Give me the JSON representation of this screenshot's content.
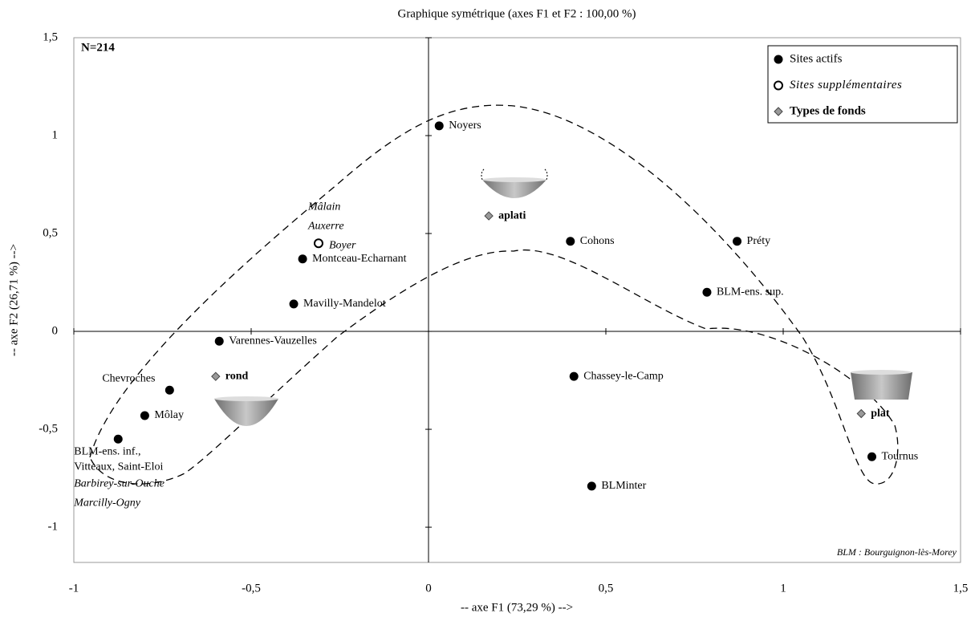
{
  "chart_data": {
    "type": "scatter",
    "title": "Graphique symétrique (axes F1 et F2 : 100,00 %)",
    "x_label": "-- axe F1 (73,29 %) -->",
    "y_label": "-- axe F2 (26,71 %) -->",
    "annotations": [
      "N=214",
      "BLM : Bourguignon-lès-Morey"
    ],
    "xlim": [
      -1,
      1.5
    ],
    "ylim": [
      -1.18,
      1.5
    ],
    "xticks": [
      -1,
      {
        "value": -0.5,
        "label": "-0,5"
      },
      0,
      {
        "value": 0.5,
        "label": "0,5"
      },
      1,
      {
        "value": 1.5,
        "label": "1,5"
      }
    ],
    "yticks": [
      -1,
      {
        "value": -0.5,
        "label": "-0,5"
      },
      0,
      {
        "value": 0.5,
        "label": "0,5"
      },
      1,
      {
        "value": 1.5,
        "label": "1,5"
      }
    ],
    "legend": "top-right",
    "series": [
      {
        "name": "Sites actifs",
        "color": "#000000",
        "x": [
          0.03,
          -0.355,
          -0.38,
          -0.59,
          -0.73,
          -0.8,
          -0.875,
          0.4,
          0.87,
          0.785,
          0.41,
          0.46,
          1.25
        ],
        "values": [
          1.05,
          0.37,
          0.14,
          -0.05,
          -0.3,
          -0.43,
          -0.55,
          0.46,
          0.46,
          0.2,
          -0.23,
          -0.79,
          -0.64
        ],
        "labels": [
          "Noyers",
          "Montceau-Echarnant",
          "Mavilly-Mandelot",
          "Varennes-Vauzelles",
          "Chevroches",
          "Môlay",
          [
            "BLM-ens. inf.,",
            "Vitteaux, Saint-Eloi"
          ],
          "Cohons",
          "Préty",
          "BLM-ens. sup.",
          "Chassey-le-Camp",
          "BLMinter",
          "Tournus"
        ]
      },
      {
        "name": "Sites supplémentaires",
        "color": "#000000",
        "x": [
          -0.31,
          -0.875
        ],
        "values": [
          0.45,
          -0.55
        ],
        "labels": [
          [
            "Mâlain",
            "Auxerre",
            "Boyer"
          ],
          [
            "Barbirey-sur-Ouche",
            "Marcilly-Ogny"
          ]
        ]
      },
      {
        "name": "Types de fonds",
        "color": "#999999",
        "x": [
          0.17,
          -0.6,
          1.22
        ],
        "values": [
          0.59,
          -0.23,
          -0.42
        ],
        "labels": [
          "aplati",
          "rond",
          "plat"
        ]
      }
    ]
  }
}
